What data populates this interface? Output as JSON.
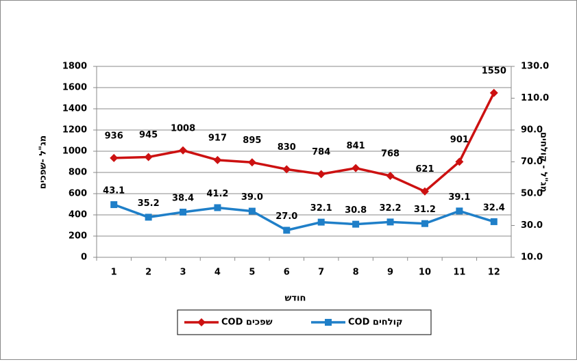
{
  "chart_data": {
    "type": "line",
    "categories": [
      "1",
      "2",
      "3",
      "4",
      "5",
      "6",
      "7",
      "8",
      "9",
      "10",
      "11",
      "12"
    ],
    "x_label": "חודש",
    "y_label": "מג\"ל -שפכים",
    "y2_label": "מג\"ל - קולחים",
    "ylim": [
      0,
      1800
    ],
    "yticks": [
      0,
      200,
      400,
      600,
      800,
      1000,
      1200,
      1400,
      1600,
      1800
    ],
    "y2lim": [
      10,
      130
    ],
    "y2ticks": [
      {
        "value": 10,
        "label": "10.0"
      },
      {
        "value": 30,
        "label": "30.0"
      },
      {
        "value": 50,
        "label": "50.0"
      },
      {
        "value": 70,
        "label": "70.0"
      },
      {
        "value": 90,
        "label": "90.0"
      },
      {
        "value": 110,
        "label": "110.0"
      },
      {
        "value": 130,
        "label": "130.0"
      }
    ],
    "grid": true,
    "legend": "bottom",
    "series": [
      {
        "name": "COD שפכים",
        "color": "#cc1111",
        "marker": "diamond",
        "values": [
          936,
          945,
          1008,
          917,
          895,
          830,
          784,
          841,
          768,
          621,
          901,
          1550
        ]
      },
      {
        "name": "COD קולחים",
        "color": "#1f7fc8",
        "marker": "square",
        "axis": "y2",
        "values": [
          43.1,
          35.2,
          38.4,
          41.2,
          39.0,
          27.0,
          32.1,
          30.8,
          32.2,
          31.2,
          39.1,
          32.4
        ],
        "value_labels": [
          "43.1",
          "35.2",
          "38.4",
          "41.2",
          "39.0",
          "27.0",
          "32.1",
          "30.8",
          "32.2",
          "31.2",
          "39.1",
          "32.4"
        ]
      }
    ]
  }
}
